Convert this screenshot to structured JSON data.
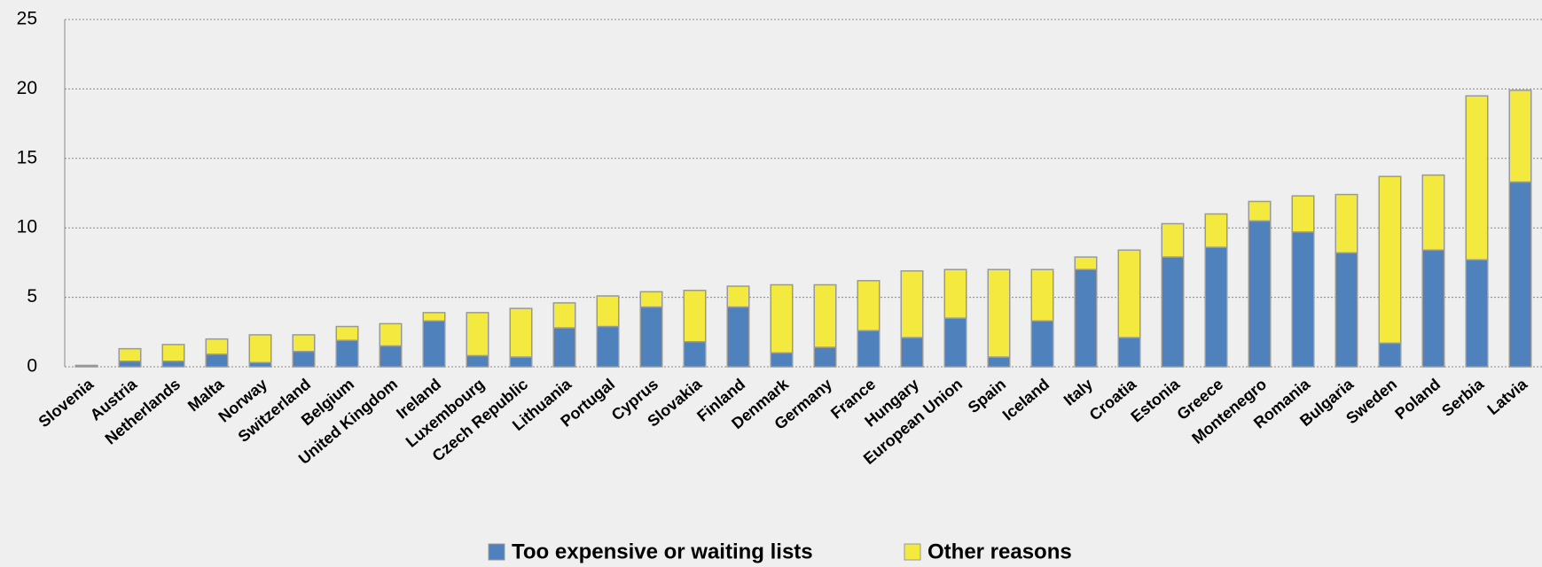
{
  "chart_data": {
    "type": "stacked-bar",
    "categories": [
      "Slovenia",
      "Austria",
      "Netherlands",
      "Malta",
      "Norway",
      "Switzerland",
      "Belgium",
      "United Kingdom",
      "Ireland",
      "Luxembourg",
      "Czech Republic",
      "Lithuania",
      "Portugal",
      "Cyprus",
      "Slovakia",
      "Finland",
      "Denmark",
      "Germany",
      "France",
      "Hungary",
      "European Union",
      "Spain",
      "Iceland",
      "Italy",
      "Croatia",
      "Estonia",
      "Greece",
      "Montenegro",
      "Romania",
      "Bulgaria",
      "Sweden",
      "Poland",
      "Serbia",
      "Latvia"
    ],
    "series": [
      {
        "name": "Too expensive or waiting lists",
        "color": "#4f81bd",
        "values": [
          0.1,
          0.4,
          0.4,
          0.9,
          0.3,
          1.1,
          1.9,
          1.5,
          3.3,
          0.8,
          0.7,
          2.8,
          2.9,
          4.3,
          1.8,
          4.3,
          1.0,
          1.4,
          2.6,
          2.1,
          3.5,
          0.7,
          3.3,
          7.0,
          2.1,
          7.9,
          8.6,
          10.5,
          9.7,
          8.2,
          1.7,
          8.4,
          7.7,
          13.3
        ]
      },
      {
        "name": "Other reasons",
        "color": "#f3e93f",
        "values": [
          0,
          0.9,
          1.2,
          1.1,
          2.0,
          1.2,
          1.0,
          1.6,
          0.6,
          3.1,
          3.5,
          1.8,
          2.2,
          1.1,
          3.7,
          1.5,
          4.9,
          4.5,
          3.6,
          4.8,
          3.5,
          6.3,
          3.7,
          0.9,
          6.3,
          2.4,
          2.4,
          1.4,
          2.6,
          4.2,
          12.0,
          5.4,
          11.8,
          6.6
        ]
      }
    ],
    "ylim": [
      0,
      25
    ],
    "yticks": [
      0,
      5,
      10,
      15,
      20,
      25
    ],
    "grid": true,
    "legend": "bottom"
  }
}
